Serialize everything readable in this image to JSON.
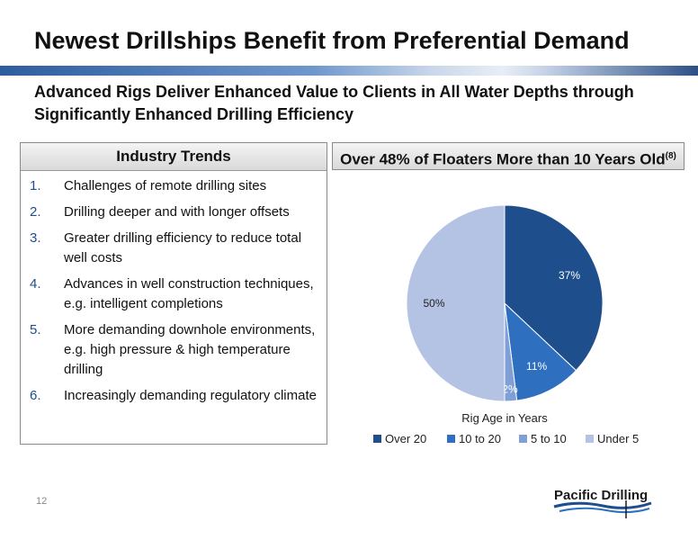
{
  "slide": {
    "title": "Newest Drillships Benefit from Preferential Demand",
    "subtitle": "Advanced Rigs Deliver Enhanced Value to Clients in All Water Depths through Significantly Enhanced Drilling Efficiency",
    "page_number": "12",
    "logo_text": "Pacific Drilling"
  },
  "trends": {
    "heading": "Industry Trends",
    "items": [
      {
        "num": "1.",
        "text": "Challenges of remote drilling sites"
      },
      {
        "num": "2.",
        "text": "Drilling deeper and with longer offsets"
      },
      {
        "num": "3.",
        "text": "Greater drilling efficiency to reduce total well costs"
      },
      {
        "num": "4.",
        "text": "Advances in well construction techniques, e.g. intelligent completions"
      },
      {
        "num": "5.",
        "text": "More demanding downhole environments, e.g. high pressure & high temperature drilling"
      },
      {
        "num": "6.",
        "text": "Increasingly demanding regulatory climate"
      }
    ]
  },
  "chart_panel": {
    "heading": "Over 48% of Floaters More than 10 Years Old",
    "heading_sup": "(8)"
  },
  "chart_data": {
    "type": "pie",
    "title": "Rig Age in Years",
    "legend_position": "bottom",
    "categories": [
      "Over 20",
      "10 to 20",
      "5 to 10",
      "Under 5"
    ],
    "values": [
      37,
      11,
      2,
      50
    ],
    "labels": [
      "37%",
      "11%",
      "2%",
      "50%"
    ],
    "colors": [
      "#1f4e8c",
      "#2e6fc0",
      "#7f9fd6",
      "#b4c3e4"
    ]
  }
}
